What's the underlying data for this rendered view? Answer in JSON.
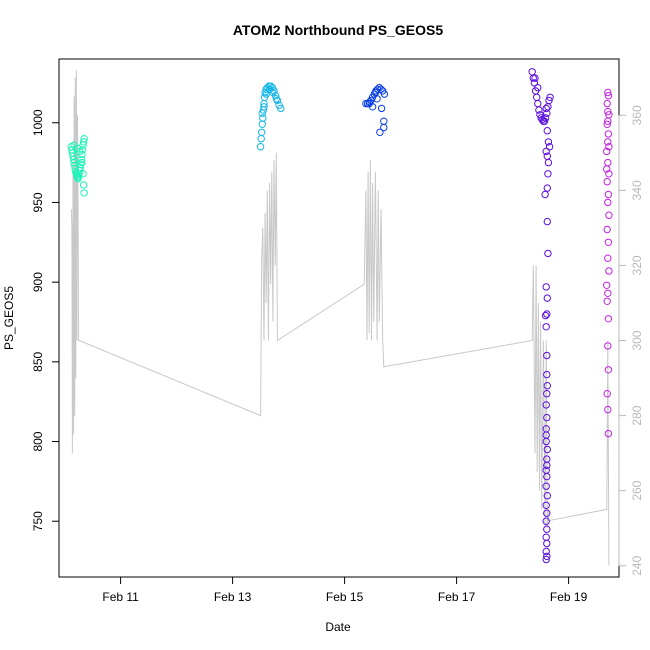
{
  "chart_data": {
    "type": "scatter",
    "title": "ATOM2 Northbound PS_GEOS5",
    "xlabel": "Date",
    "ylabel": "PS_GEOS5",
    "x_unit": "days (February)",
    "xlim": [
      9.9,
      19.9
    ],
    "ylim": [
      715,
      1040
    ],
    "y2lim": [
      237,
      375
    ],
    "x_ticks": [
      {
        "value": 11,
        "label": "Feb 11"
      },
      {
        "value": 13,
        "label": "Feb 13"
      },
      {
        "value": 15,
        "label": "Feb 15"
      },
      {
        "value": 17,
        "label": "Feb 17"
      },
      {
        "value": 19,
        "label": "Feb 19"
      }
    ],
    "y_ticks": [
      750,
      800,
      850,
      900,
      950,
      1000
    ],
    "y2_ticks": [
      240,
      260,
      280,
      300,
      320,
      340,
      360
    ],
    "grid": false,
    "legend": "none",
    "colors": {
      "seg1": "#1CF5B8",
      "seg2": "#12B6E8",
      "seg3": "#0A3FE6",
      "seg4": "#5A0EE0",
      "seg5": "#C51FE8",
      "line": "#c8c8c8",
      "axis": "#000000",
      "axis_right": "#b8b8b8"
    },
    "series": [
      {
        "color_key": "seg1",
        "points": [
          [
            10.12,
            985
          ],
          [
            10.13,
            983
          ],
          [
            10.14,
            981
          ],
          [
            10.15,
            979
          ],
          [
            10.16,
            977
          ],
          [
            10.17,
            975
          ],
          [
            10.18,
            973
          ],
          [
            10.19,
            971
          ],
          [
            10.2,
            969
          ],
          [
            10.21,
            968
          ],
          [
            10.22,
            967
          ],
          [
            10.23,
            966
          ],
          [
            10.24,
            965
          ],
          [
            10.25,
            966
          ],
          [
            10.26,
            968
          ],
          [
            10.27,
            970
          ],
          [
            10.28,
            972
          ],
          [
            10.29,
            974
          ],
          [
            10.3,
            977
          ],
          [
            10.31,
            980
          ],
          [
            10.32,
            983
          ],
          [
            10.33,
            986
          ],
          [
            10.34,
            988
          ],
          [
            10.35,
            990
          ],
          [
            10.17,
            986
          ],
          [
            10.23,
            984
          ],
          [
            10.27,
            982
          ],
          [
            10.31,
            975
          ],
          [
            10.33,
            968
          ],
          [
            10.34,
            961
          ],
          [
            10.35,
            956
          ]
        ]
      },
      {
        "color_key": "seg2",
        "points": [
          [
            13.5,
            985
          ],
          [
            13.51,
            990
          ],
          [
            13.52,
            994
          ],
          [
            13.53,
            999
          ],
          [
            13.54,
            1003
          ],
          [
            13.55,
            1008
          ],
          [
            13.56,
            1012
          ],
          [
            13.57,
            1016
          ],
          [
            13.58,
            1019
          ],
          [
            13.6,
            1021
          ],
          [
            13.62,
            1022
          ],
          [
            13.65,
            1023
          ],
          [
            13.68,
            1023
          ],
          [
            13.71,
            1022
          ],
          [
            13.74,
            1020
          ],
          [
            13.77,
            1017
          ],
          [
            13.8,
            1014
          ],
          [
            13.83,
            1011
          ],
          [
            13.86,
            1009
          ],
          [
            13.53,
            1006
          ],
          [
            13.56,
            1010
          ],
          [
            13.6,
            1018
          ],
          [
            13.66,
            1021
          ],
          [
            13.72,
            1019
          ],
          [
            13.78,
            1015
          ]
        ]
      },
      {
        "color_key": "seg3",
        "points": [
          [
            15.38,
            1012
          ],
          [
            15.41,
            1012
          ],
          [
            15.44,
            1012
          ],
          [
            15.47,
            1014
          ],
          [
            15.5,
            1016
          ],
          [
            15.53,
            1018
          ],
          [
            15.56,
            1020
          ],
          [
            15.59,
            1021
          ],
          [
            15.62,
            1022
          ],
          [
            15.65,
            1021
          ],
          [
            15.68,
            1020
          ],
          [
            15.71,
            1018
          ],
          [
            15.5,
            1010
          ],
          [
            15.58,
            1015
          ],
          [
            15.66,
            1009
          ],
          [
            15.7,
            1001
          ],
          [
            15.7,
            997
          ],
          [
            15.63,
            994
          ],
          [
            15.45,
            1013
          ],
          [
            15.55,
            1019
          ]
        ]
      },
      {
        "color_key": "seg4",
        "points": [
          [
            18.35,
            1032
          ],
          [
            18.37,
            1028
          ],
          [
            18.39,
            1025
          ],
          [
            18.41,
            1020
          ],
          [
            18.43,
            1016
          ],
          [
            18.45,
            1012
          ],
          [
            18.47,
            1008
          ],
          [
            18.49,
            1005
          ],
          [
            18.51,
            1003
          ],
          [
            18.53,
            1002
          ],
          [
            18.55,
            1001
          ],
          [
            18.57,
            1001
          ],
          [
            18.59,
            1003
          ],
          [
            18.61,
            1006
          ],
          [
            18.63,
            1010
          ],
          [
            18.65,
            1014
          ],
          [
            18.67,
            1016
          ],
          [
            18.4,
            1028
          ],
          [
            18.45,
            1022
          ],
          [
            18.6,
            1009
          ],
          [
            18.62,
            995
          ],
          [
            18.64,
            988
          ],
          [
            18.66,
            985
          ],
          [
            18.6,
            982
          ],
          [
            18.62,
            979
          ],
          [
            18.64,
            975
          ],
          [
            18.63,
            968
          ],
          [
            18.58,
            955
          ],
          [
            18.62,
            959
          ],
          [
            18.62,
            938
          ],
          [
            18.63,
            918
          ],
          [
            18.6,
            897
          ],
          [
            18.62,
            890
          ],
          [
            18.59,
            879
          ],
          [
            18.61,
            880
          ],
          [
            18.6,
            872
          ],
          [
            18.61,
            854
          ],
          [
            18.61,
            842
          ],
          [
            18.62,
            835
          ],
          [
            18.61,
            830
          ],
          [
            18.6,
            823
          ],
          [
            18.61,
            815
          ],
          [
            18.6,
            808
          ],
          [
            18.6,
            804
          ],
          [
            18.6,
            800
          ],
          [
            18.62,
            795
          ],
          [
            18.61,
            789
          ],
          [
            18.61,
            785
          ],
          [
            18.6,
            782
          ],
          [
            18.61,
            778
          ],
          [
            18.6,
            772
          ],
          [
            18.62,
            766
          ],
          [
            18.6,
            760
          ],
          [
            18.61,
            755
          ],
          [
            18.6,
            750
          ],
          [
            18.61,
            745
          ],
          [
            18.6,
            740
          ],
          [
            18.61,
            736
          ],
          [
            18.6,
            731
          ],
          [
            18.61,
            728
          ],
          [
            18.6,
            726
          ]
        ]
      },
      {
        "color_key": "seg5",
        "points": [
          [
            19.7,
            1019
          ],
          [
            19.71,
            1017
          ],
          [
            19.69,
            1012
          ],
          [
            19.7,
            1007
          ],
          [
            19.72,
            1005
          ],
          [
            19.69,
            999
          ],
          [
            19.71,
            993
          ],
          [
            19.7,
            988
          ],
          [
            19.68,
            982
          ],
          [
            19.7,
            975
          ],
          [
            19.72,
            968
          ],
          [
            19.69,
            963
          ],
          [
            19.71,
            955
          ],
          [
            19.7,
            950
          ],
          [
            19.72,
            942
          ],
          [
            19.69,
            933
          ],
          [
            19.71,
            925
          ],
          [
            19.7,
            915
          ],
          [
            19.72,
            907
          ],
          [
            19.68,
            898
          ],
          [
            19.7,
            893
          ],
          [
            19.69,
            888
          ],
          [
            19.71,
            877
          ],
          [
            19.7,
            860
          ],
          [
            19.71,
            845
          ],
          [
            19.69,
            830
          ],
          [
            19.7,
            820
          ],
          [
            19.71,
            805
          ],
          [
            19.7,
            1001
          ],
          [
            19.72,
            985
          ],
          [
            19.68,
            971
          ]
        ]
      }
    ],
    "secondary_line": {
      "axis": "right",
      "points": [
        [
          10.12,
          335
        ],
        [
          10.13,
          330
        ],
        [
          10.14,
          270
        ],
        [
          10.15,
          345
        ],
        [
          10.16,
          275
        ],
        [
          10.17,
          365
        ],
        [
          10.18,
          280
        ],
        [
          10.19,
          370
        ],
        [
          10.2,
          290
        ],
        [
          10.21,
          372
        ],
        [
          10.22,
          300
        ],
        [
          10.23,
          360
        ],
        [
          10.24,
          340
        ],
        [
          10.25,
          300
        ],
        [
          10.26,
          300
        ],
        [
          13.5,
          280
        ],
        [
          13.52,
          322
        ],
        [
          13.54,
          330
        ],
        [
          13.56,
          300
        ],
        [
          13.58,
          334
        ],
        [
          13.6,
          310
        ],
        [
          13.62,
          340
        ],
        [
          13.64,
          300
        ],
        [
          13.66,
          342
        ],
        [
          13.68,
          315
        ],
        [
          13.7,
          345
        ],
        [
          13.72,
          305
        ],
        [
          13.74,
          348
        ],
        [
          13.76,
          320
        ],
        [
          13.78,
          350
        ],
        [
          13.8,
          300
        ],
        [
          15.35,
          315
        ],
        [
          15.38,
          340
        ],
        [
          15.4,
          300
        ],
        [
          15.42,
          345
        ],
        [
          15.44,
          302
        ],
        [
          15.46,
          348
        ],
        [
          15.48,
          300
        ],
        [
          15.5,
          342
        ],
        [
          15.52,
          305
        ],
        [
          15.55,
          345
        ],
        [
          15.58,
          300
        ],
        [
          15.6,
          340
        ],
        [
          15.62,
          305
        ],
        [
          15.65,
          335
        ],
        [
          15.68,
          300
        ],
        [
          15.7,
          293
        ],
        [
          18.35,
          300
        ],
        [
          18.37,
          320
        ],
        [
          18.4,
          270
        ],
        [
          18.42,
          320
        ],
        [
          18.44,
          265
        ],
        [
          18.46,
          310
        ],
        [
          18.48,
          260
        ],
        [
          18.5,
          305
        ],
        [
          18.52,
          255
        ],
        [
          18.55,
          300
        ],
        [
          18.58,
          250
        ],
        [
          18.6,
          300
        ],
        [
          18.62,
          250
        ],
        [
          18.63,
          255
        ],
        [
          18.64,
          252
        ],
        [
          19.68,
          255
        ],
        [
          19.69,
          270
        ],
        [
          19.7,
          300
        ],
        [
          19.72,
          240
        ]
      ]
    }
  }
}
